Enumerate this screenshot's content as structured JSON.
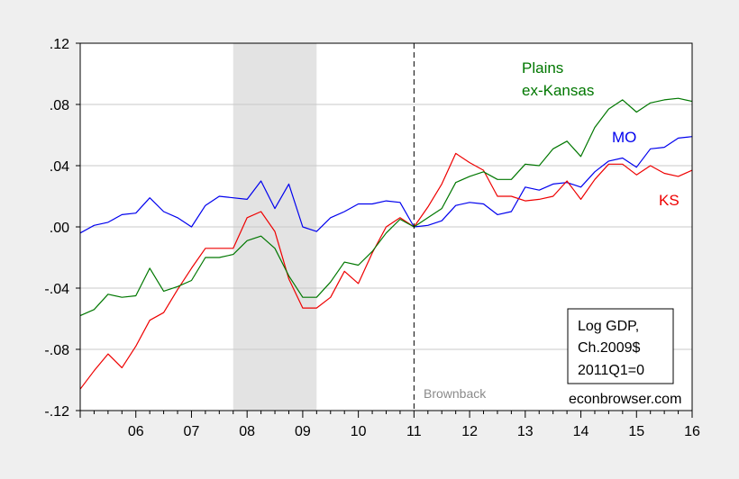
{
  "chart_data": {
    "type": "line",
    "x_label": "",
    "y_label": "",
    "xlim": [
      2005.0,
      2016.0
    ],
    "ylim": [
      -0.12,
      0.12
    ],
    "x_ticks": [
      {
        "value": 2006,
        "label": "06"
      },
      {
        "value": 2007,
        "label": "07"
      },
      {
        "value": 2008,
        "label": "08"
      },
      {
        "value": 2009,
        "label": "09"
      },
      {
        "value": 2010,
        "label": "10"
      },
      {
        "value": 2011,
        "label": "11"
      },
      {
        "value": 2012,
        "label": "12"
      },
      {
        "value": 2013,
        "label": "13"
      },
      {
        "value": 2014,
        "label": "14"
      },
      {
        "value": 2015,
        "label": "15"
      },
      {
        "value": 2016,
        "label": "16"
      }
    ],
    "y_ticks": [
      {
        "value": 0.12,
        "label": ".12"
      },
      {
        "value": 0.08,
        "label": ".08"
      },
      {
        "value": 0.04,
        "label": ".04"
      },
      {
        "value": 0.0,
        "label": ".00"
      },
      {
        "value": -0.04,
        "label": "-.04"
      },
      {
        "value": -0.08,
        "label": "-.08"
      },
      {
        "value": -0.12,
        "label": "-.12"
      }
    ],
    "grid": true,
    "recession_shading": {
      "start": 2007.75,
      "end": 2009.25
    },
    "vertical_marker": {
      "x": 2011.0,
      "label": "Brownback"
    },
    "x": [
      2005.0,
      2005.25,
      2005.5,
      2005.75,
      2006.0,
      2006.25,
      2006.5,
      2006.75,
      2007.0,
      2007.25,
      2007.5,
      2007.75,
      2008.0,
      2008.25,
      2008.5,
      2008.75,
      2009.0,
      2009.25,
      2009.5,
      2009.75,
      2010.0,
      2010.25,
      2010.5,
      2010.75,
      2011.0,
      2011.25,
      2011.5,
      2011.75,
      2012.0,
      2012.25,
      2012.5,
      2012.75,
      2013.0,
      2013.25,
      2013.5,
      2013.75,
      2014.0,
      2014.25,
      2014.5,
      2014.75,
      2015.0,
      2015.25,
      2015.5,
      2015.75,
      2016.0
    ],
    "series": [
      {
        "name": "MO",
        "color": "#0000ee",
        "values": [
          -0.004,
          0.001,
          0.003,
          0.008,
          0.009,
          0.019,
          0.01,
          0.006,
          0.0,
          0.014,
          0.02,
          0.019,
          0.018,
          0.03,
          0.012,
          0.028,
          0.0,
          -0.003,
          0.006,
          0.01,
          0.015,
          0.015,
          0.017,
          0.016,
          0.0,
          0.001,
          0.004,
          0.014,
          0.016,
          0.015,
          0.008,
          0.01,
          0.026,
          0.024,
          0.028,
          0.029,
          0.026,
          0.036,
          0.043,
          0.045,
          0.039,
          0.051,
          0.052,
          0.058,
          0.059
        ]
      },
      {
        "name": "KS",
        "color": "#ee0000",
        "values": [
          -0.106,
          -0.094,
          -0.083,
          -0.092,
          -0.078,
          -0.061,
          -0.056,
          -0.041,
          -0.027,
          -0.014,
          -0.014,
          -0.014,
          0.006,
          0.01,
          -0.003,
          -0.034,
          -0.053,
          -0.053,
          -0.046,
          -0.029,
          -0.037,
          -0.017,
          0.0,
          0.006,
          0.0,
          0.013,
          0.028,
          0.048,
          0.042,
          0.037,
          0.02,
          0.02,
          0.017,
          0.018,
          0.02,
          0.03,
          0.018,
          0.031,
          0.041,
          0.041,
          0.034,
          0.04,
          0.035,
          0.033,
          0.037
        ]
      },
      {
        "name": "Plains ex-Kansas",
        "color": "#007700",
        "values": [
          -0.058,
          -0.054,
          -0.044,
          -0.046,
          -0.045,
          -0.027,
          -0.042,
          -0.039,
          -0.035,
          -0.02,
          -0.02,
          -0.018,
          -0.009,
          -0.006,
          -0.014,
          -0.032,
          -0.046,
          -0.046,
          -0.036,
          -0.023,
          -0.025,
          -0.016,
          -0.004,
          0.005,
          0.0,
          0.006,
          0.012,
          0.029,
          0.033,
          0.036,
          0.031,
          0.031,
          0.041,
          0.04,
          0.051,
          0.056,
          0.046,
          0.065,
          0.077,
          0.083,
          0.075,
          0.081,
          0.083,
          0.084,
          0.082
        ]
      }
    ]
  },
  "series_labels": [
    {
      "lines": [
        "Plains",
        "ex-Kansas"
      ],
      "color": "#007700"
    },
    {
      "lines": [
        "MO"
      ],
      "color": "#0000ee"
    },
    {
      "lines": [
        "KS"
      ],
      "color": "#ee0000"
    }
  ],
  "legend_box": {
    "lines": [
      "Log GDP,",
      "Ch.2009$",
      "2011Q1=0"
    ]
  },
  "credit": "econbrowser.com",
  "marker_label": "Brownback"
}
